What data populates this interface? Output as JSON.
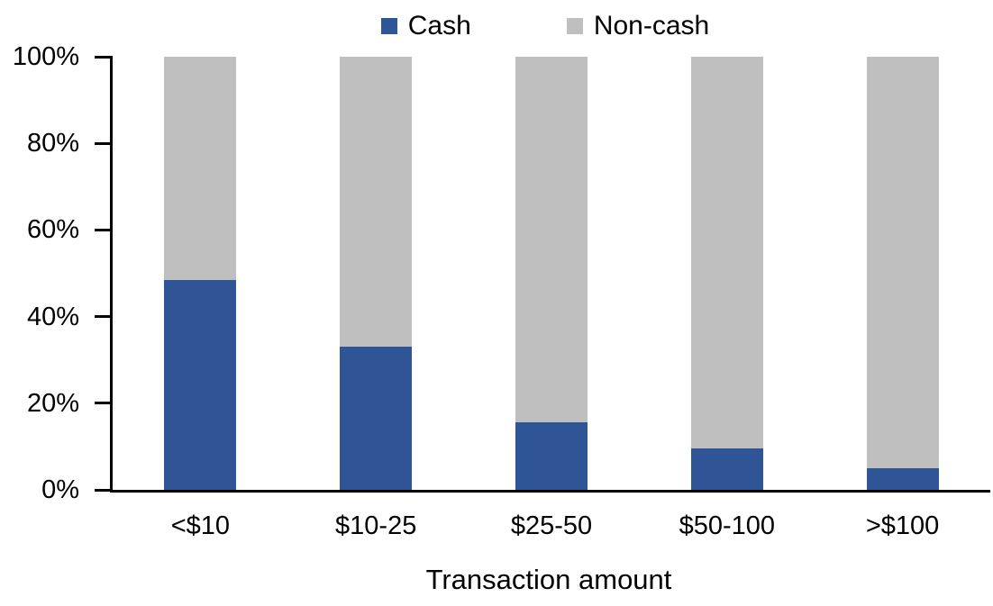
{
  "chart_data": {
    "type": "bar",
    "stacked": true,
    "stacked_total": 100,
    "title": "",
    "xlabel": "Transaction amount",
    "ylabel": "",
    "ylim": [
      0,
      100
    ],
    "yticks": [
      0,
      20,
      40,
      60,
      80,
      100
    ],
    "ytick_labels": [
      "0%",
      "20%",
      "40%",
      "60%",
      "80%",
      "100%"
    ],
    "categories": [
      "<$10",
      "$10-25",
      "$25-50",
      "$50-100",
      ">$100"
    ],
    "series": [
      {
        "name": "Cash",
        "color": "#2F5597",
        "values": [
          48.5,
          33,
          15.5,
          9.5,
          5
        ]
      },
      {
        "name": "Non-cash",
        "color": "#BFBFBF",
        "values": [
          51.5,
          67,
          84.5,
          90.5,
          95
        ]
      }
    ],
    "legend_position": "top-center",
    "grid": false,
    "axis_color": "#000000",
    "background_color": "#FFFFFF"
  },
  "legend": {
    "items": [
      {
        "label": "Cash",
        "color": "#2F5597"
      },
      {
        "label": "Non-cash",
        "color": "#BFBFBF"
      }
    ]
  }
}
